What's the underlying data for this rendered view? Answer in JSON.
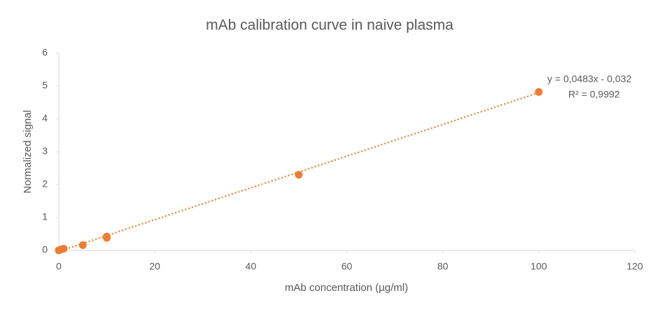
{
  "chart_data": {
    "type": "scatter",
    "title": "mAb calibration curve in naive plasma",
    "x_label": "mAb concentration (µg/ml)",
    "y_label": "Normalized signal",
    "series": [
      {
        "name": "Normalized signal",
        "color": "#ed7d31",
        "x": [
          0,
          0.5,
          1,
          5,
          10,
          10,
          50,
          100
        ],
        "values": [
          0,
          0.03,
          0.05,
          0.16,
          0.38,
          0.42,
          2.3,
          4.82
        ]
      }
    ],
    "trendline": {
      "slope": 0.0483,
      "intercept": -0.032,
      "color": "#ed7d31",
      "label": "y = 0,0483x - 0,032",
      "r2_label": "R² = 0,9992"
    },
    "xlim": [
      0,
      120
    ],
    "xticks": [
      0,
      20,
      40,
      60,
      80,
      100,
      120
    ],
    "ylim": [
      0,
      6
    ],
    "yticks": [
      0,
      1,
      2,
      3,
      4,
      5,
      6
    ],
    "grid": false
  }
}
